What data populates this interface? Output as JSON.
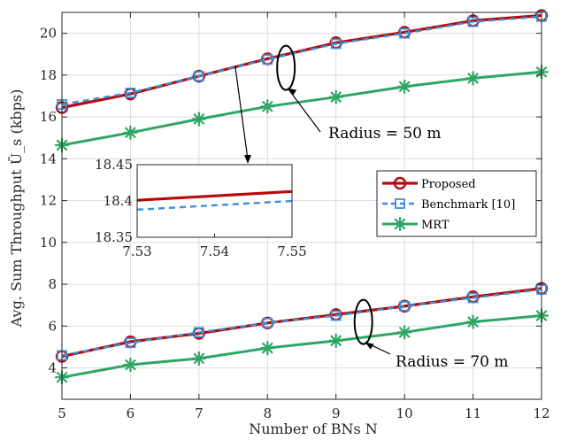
{
  "chart_data": {
    "type": "line",
    "xlabel": "Number of BNs N",
    "ylabel": "Avg. Sum Throughput Ū_s (kbps)",
    "x": [
      5,
      6,
      7,
      8,
      9,
      10,
      11,
      12
    ],
    "xlim": [
      5,
      12
    ],
    "ylim": [
      2.5,
      21
    ],
    "xticks": [
      "5",
      "6",
      "7",
      "8",
      "9",
      "10",
      "11",
      "12"
    ],
    "yticks": [
      "4",
      "6",
      "8",
      "10",
      "12",
      "14",
      "16",
      "18",
      "20"
    ],
    "grid": true,
    "legend_position": "right-center",
    "groups": [
      {
        "annotation": "Radius = 50 m",
        "series": [
          {
            "name": "Proposed",
            "values": [
              16.45,
              17.1,
              17.95,
              18.78,
              19.55,
              20.05,
              20.6,
              20.85
            ]
          },
          {
            "name": "Benchmark [10]",
            "values": [
              16.6,
              17.15,
              17.95,
              18.75,
              19.5,
              20.0,
              20.55,
              20.8
            ]
          },
          {
            "name": "MRT",
            "values": [
              14.65,
              15.25,
              15.9,
              16.5,
              16.95,
              17.45,
              17.85,
              18.15
            ]
          }
        ]
      },
      {
        "annotation": "Radius = 70 m",
        "series": [
          {
            "name": "Proposed",
            "values": [
              4.55,
              5.25,
              5.65,
              6.15,
              6.55,
              6.95,
              7.4,
              7.8
            ]
          },
          {
            "name": "Benchmark [10]",
            "values": [
              4.6,
              5.2,
              5.7,
              6.15,
              6.5,
              6.95,
              7.35,
              7.75
            ]
          },
          {
            "name": "MRT",
            "values": [
              3.55,
              4.15,
              4.45,
              4.95,
              5.3,
              5.7,
              6.2,
              6.5
            ]
          }
        ]
      }
    ],
    "inset": {
      "xlim": [
        7.53,
        7.55
      ],
      "ylim": [
        18.35,
        18.45
      ],
      "xticks": [
        "7.53",
        "7.54",
        "7.55"
      ],
      "yticks": [
        "18.35",
        "18.4",
        "18.45"
      ],
      "series": [
        {
          "name": "Proposed",
          "x": [
            7.53,
            7.55
          ],
          "values": [
            18.401,
            18.413
          ]
        },
        {
          "name": "Benchmark [10]",
          "x": [
            7.53,
            7.55
          ],
          "values": [
            18.388,
            18.4
          ]
        }
      ]
    },
    "legend": [
      "Proposed",
      "Benchmark [10]",
      "MRT"
    ]
  },
  "colors": {
    "proposed": "#b40a0a",
    "benchmark": "#3d8fd6",
    "mrt": "#2ea664",
    "grid": "#dcdcdc",
    "axis": "#262626"
  }
}
